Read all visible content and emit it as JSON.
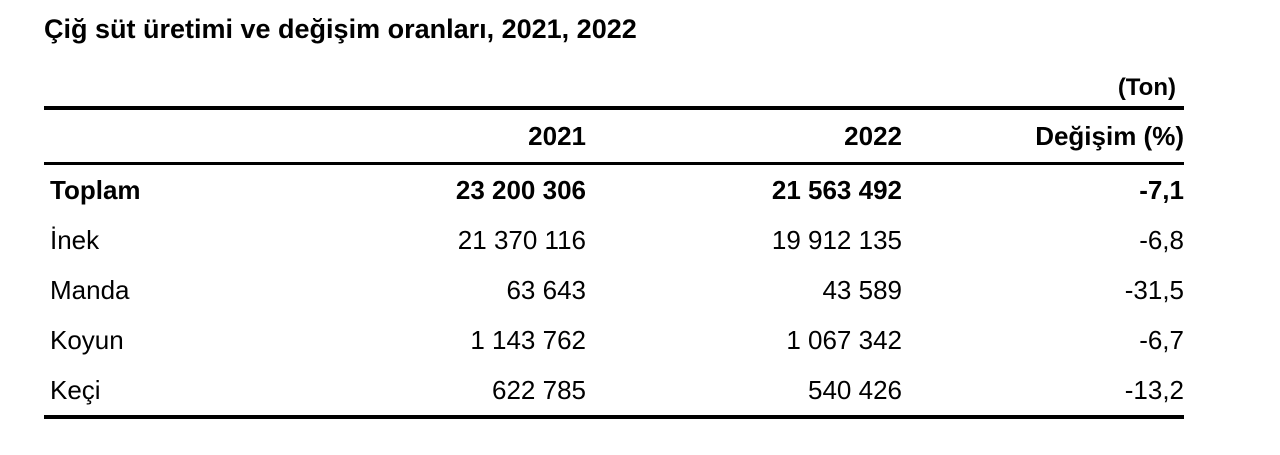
{
  "title": "Çiğ süt üretimi ve değişim oranları, 2021, 2022",
  "unit": "(Ton)",
  "table": {
    "header": [
      "2021",
      "2022",
      "Değişim (%)"
    ],
    "rows": [
      [
        "Toplam",
        "23 200 306",
        "21 563 492",
        "-7,1"
      ],
      [
        "İnek",
        "21 370 116",
        "19 912 135",
        "-6,8"
      ],
      [
        "Manda",
        "63 643",
        "43 589",
        "-31,5"
      ],
      [
        "Koyun",
        "1 143 762",
        "1 067 342",
        "-6,7"
      ],
      [
        "Keçi",
        "622 785",
        "540 426",
        "-13,2"
      ]
    ]
  }
}
